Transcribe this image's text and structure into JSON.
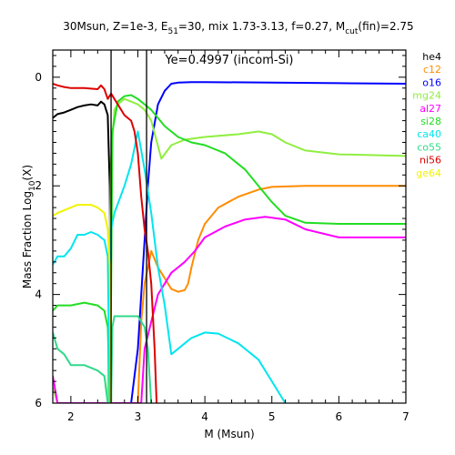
{
  "chart_data": {
    "type": "line",
    "title": {
      "main": "30Msun, Z=1e-3, E",
      "e_sub": "51",
      "mid": "=30, mix 1.73-3.13, f=0.27, M",
      "m_sub": "cut",
      "tail": "(fin)=2.75"
    },
    "annotation": "Ye=0.4997 (incom-Si)",
    "xlabel": "M (Msun)",
    "ylabel": {
      "main": "Mass Fraction Log",
      "sub": "10",
      "tail": "(X)"
    },
    "xlim": [
      1.73,
      7
    ],
    "ylim": [
      -6,
      0.5
    ],
    "xticks": [
      "2",
      "3",
      "4",
      "5",
      "6",
      "7"
    ],
    "yticks": [
      "0",
      "2",
      "4",
      "6"
    ],
    "vlines": [
      2.6,
      3.13
    ],
    "legend_position": "right",
    "series": [
      {
        "name": "he4",
        "color": "#000000",
        "points": [
          [
            1.73,
            -0.75
          ],
          [
            1.8,
            -0.68
          ],
          [
            1.9,
            -0.65
          ],
          [
            2.0,
            -0.6
          ],
          [
            2.1,
            -0.55
          ],
          [
            2.2,
            -0.52
          ],
          [
            2.3,
            -0.5
          ],
          [
            2.4,
            -0.52
          ],
          [
            2.45,
            -0.45
          ],
          [
            2.5,
            -0.5
          ],
          [
            2.55,
            -0.7
          ],
          [
            2.58,
            -2.0
          ],
          [
            2.6,
            -6.0
          ]
        ]
      },
      {
        "name": "c12",
        "color": "#ff8c00",
        "points": [
          [
            3.0,
            -6.0
          ],
          [
            3.05,
            -4.5
          ],
          [
            3.1,
            -3.8
          ],
          [
            3.2,
            -3.2
          ],
          [
            3.3,
            -3.5
          ],
          [
            3.4,
            -3.7
          ],
          [
            3.5,
            -3.9
          ],
          [
            3.6,
            -3.95
          ],
          [
            3.7,
            -3.92
          ],
          [
            3.75,
            -3.8
          ],
          [
            3.8,
            -3.5
          ],
          [
            3.9,
            -3.0
          ],
          [
            4.0,
            -2.7
          ],
          [
            4.2,
            -2.4
          ],
          [
            4.5,
            -2.2
          ],
          [
            4.8,
            -2.07
          ],
          [
            5.0,
            -2.02
          ],
          [
            5.5,
            -2.0
          ],
          [
            6.0,
            -2.0
          ],
          [
            7.0,
            -2.0
          ]
        ]
      },
      {
        "name": "o16",
        "color": "#0000ff",
        "points": [
          [
            2.5,
            -6.0
          ],
          [
            2.6,
            -6.0
          ],
          [
            2.7,
            -6.0
          ],
          [
            2.9,
            -6.0
          ],
          [
            3.0,
            -5.0
          ],
          [
            3.05,
            -4.0
          ],
          [
            3.1,
            -3.0
          ],
          [
            3.15,
            -2.0
          ],
          [
            3.2,
            -1.2
          ],
          [
            3.3,
            -0.5
          ],
          [
            3.4,
            -0.25
          ],
          [
            3.5,
            -0.12
          ],
          [
            3.6,
            -0.1
          ],
          [
            3.8,
            -0.09
          ],
          [
            4.0,
            -0.09
          ],
          [
            5.0,
            -0.1
          ],
          [
            6.0,
            -0.11
          ],
          [
            7.0,
            -0.12
          ]
        ]
      },
      {
        "name": "mg24",
        "color": "#90ee40",
        "points": [
          [
            1.73,
            -5.7
          ],
          [
            1.8,
            -6.0
          ],
          [
            2.55,
            -6.0
          ],
          [
            2.58,
            -3.0
          ],
          [
            2.6,
            -1.5
          ],
          [
            2.65,
            -0.6
          ],
          [
            2.7,
            -0.5
          ],
          [
            2.8,
            -0.4
          ],
          [
            3.0,
            -0.5
          ],
          [
            3.1,
            -0.6
          ],
          [
            3.2,
            -0.8
          ],
          [
            3.35,
            -1.5
          ],
          [
            3.5,
            -1.25
          ],
          [
            3.7,
            -1.15
          ],
          [
            4.0,
            -1.1
          ],
          [
            4.5,
            -1.05
          ],
          [
            4.8,
            -1.0
          ],
          [
            5.0,
            -1.05
          ],
          [
            5.2,
            -1.2
          ],
          [
            5.5,
            -1.35
          ],
          [
            6.0,
            -1.42
          ],
          [
            7.0,
            -1.45
          ]
        ]
      },
      {
        "name": "al27",
        "color": "#ff00ff",
        "points": [
          [
            1.73,
            -5.5
          ],
          [
            1.8,
            -6.0
          ],
          [
            3.05,
            -6.0
          ],
          [
            3.1,
            -5.0
          ],
          [
            3.2,
            -4.5
          ],
          [
            3.3,
            -4.0
          ],
          [
            3.4,
            -3.8
          ],
          [
            3.5,
            -3.6
          ],
          [
            3.6,
            -3.5
          ],
          [
            3.7,
            -3.4
          ],
          [
            3.85,
            -3.2
          ],
          [
            4.0,
            -2.95
          ],
          [
            4.3,
            -2.75
          ],
          [
            4.6,
            -2.62
          ],
          [
            4.9,
            -2.57
          ],
          [
            5.2,
            -2.62
          ],
          [
            5.5,
            -2.8
          ],
          [
            6.0,
            -2.95
          ],
          [
            7.0,
            -2.95
          ]
        ]
      },
      {
        "name": "si28",
        "color": "#22dd22",
        "points": [
          [
            1.73,
            -4.3
          ],
          [
            1.8,
            -4.2
          ],
          [
            2.0,
            -4.2
          ],
          [
            2.2,
            -4.15
          ],
          [
            2.4,
            -4.2
          ],
          [
            2.5,
            -4.3
          ],
          [
            2.55,
            -4.6
          ],
          [
            2.58,
            -5.8
          ],
          [
            2.6,
            -4.0
          ],
          [
            2.62,
            -1.0
          ],
          [
            2.7,
            -0.45
          ],
          [
            2.8,
            -0.35
          ],
          [
            2.9,
            -0.33
          ],
          [
            3.0,
            -0.4
          ],
          [
            3.1,
            -0.5
          ],
          [
            3.2,
            -0.6
          ],
          [
            3.4,
            -0.9
          ],
          [
            3.6,
            -1.1
          ],
          [
            3.8,
            -1.2
          ],
          [
            4.0,
            -1.25
          ],
          [
            4.3,
            -1.4
          ],
          [
            4.6,
            -1.7
          ],
          [
            4.8,
            -2.0
          ],
          [
            5.0,
            -2.3
          ],
          [
            5.2,
            -2.55
          ],
          [
            5.5,
            -2.68
          ],
          [
            6.0,
            -2.7
          ],
          [
            7.0,
            -2.7
          ]
        ]
      },
      {
        "name": "ca40",
        "color": "#00e5ee",
        "points": [
          [
            1.73,
            -3.45
          ],
          [
            1.8,
            -3.3
          ],
          [
            1.9,
            -3.3
          ],
          [
            2.0,
            -3.15
          ],
          [
            2.1,
            -2.9
          ],
          [
            2.2,
            -2.9
          ],
          [
            2.3,
            -2.85
          ],
          [
            2.4,
            -2.9
          ],
          [
            2.5,
            -3.0
          ],
          [
            2.55,
            -3.3
          ],
          [
            2.58,
            -6.0
          ],
          [
            2.6,
            -2.8
          ],
          [
            2.65,
            -2.5
          ],
          [
            2.8,
            -2.0
          ],
          [
            2.9,
            -1.6
          ],
          [
            3.0,
            -1.0
          ],
          [
            3.1,
            -1.7
          ],
          [
            3.2,
            -2.5
          ],
          [
            3.3,
            -3.5
          ],
          [
            3.4,
            -4.2
          ],
          [
            3.5,
            -5.1
          ],
          [
            3.6,
            -5.0
          ],
          [
            3.7,
            -4.9
          ],
          [
            3.8,
            -4.8
          ],
          [
            4.0,
            -4.7
          ],
          [
            4.2,
            -4.72
          ],
          [
            4.5,
            -4.9
          ],
          [
            4.8,
            -5.2
          ],
          [
            5.0,
            -5.6
          ],
          [
            5.2,
            -6.0
          ]
        ]
      },
      {
        "name": "co55",
        "color": "#30d98a",
        "points": [
          [
            1.73,
            -4.7
          ],
          [
            1.8,
            -5.0
          ],
          [
            1.9,
            -5.1
          ],
          [
            2.0,
            -5.3
          ],
          [
            2.2,
            -5.3
          ],
          [
            2.4,
            -5.4
          ],
          [
            2.5,
            -5.5
          ],
          [
            2.55,
            -6.0
          ],
          [
            2.6,
            -6.0
          ],
          [
            2.62,
            -4.6
          ],
          [
            2.65,
            -4.4
          ],
          [
            2.8,
            -4.4
          ],
          [
            3.0,
            -4.4
          ],
          [
            3.1,
            -4.6
          ],
          [
            3.15,
            -5.0
          ],
          [
            3.2,
            -6.0
          ]
        ]
      },
      {
        "name": "ni56",
        "color": "#dd0000",
        "points": [
          [
            1.73,
            -0.12
          ],
          [
            1.8,
            -0.15
          ],
          [
            1.9,
            -0.18
          ],
          [
            2.0,
            -0.2
          ],
          [
            2.2,
            -0.2
          ],
          [
            2.4,
            -0.22
          ],
          [
            2.45,
            -0.15
          ],
          [
            2.5,
            -0.22
          ],
          [
            2.55,
            -0.4
          ],
          [
            2.6,
            -0.3
          ],
          [
            2.7,
            -0.5
          ],
          [
            2.8,
            -0.7
          ],
          [
            2.9,
            -0.8
          ],
          [
            2.95,
            -1.0
          ],
          [
            3.0,
            -1.4
          ],
          [
            3.05,
            -2.2
          ],
          [
            3.1,
            -2.8
          ],
          [
            3.15,
            -3.2
          ],
          [
            3.2,
            -3.8
          ],
          [
            3.25,
            -5.0
          ],
          [
            3.28,
            -6.0
          ]
        ]
      },
      {
        "name": "ge64",
        "color": "#f2f200",
        "points": [
          [
            1.73,
            -2.55
          ],
          [
            1.8,
            -2.5
          ],
          [
            1.9,
            -2.45
          ],
          [
            2.0,
            -2.4
          ],
          [
            2.1,
            -2.35
          ],
          [
            2.2,
            -2.35
          ],
          [
            2.3,
            -2.35
          ],
          [
            2.4,
            -2.4
          ],
          [
            2.5,
            -2.5
          ],
          [
            2.55,
            -2.8
          ],
          [
            2.58,
            -3.5
          ],
          [
            2.6,
            -6.0
          ]
        ]
      }
    ]
  }
}
